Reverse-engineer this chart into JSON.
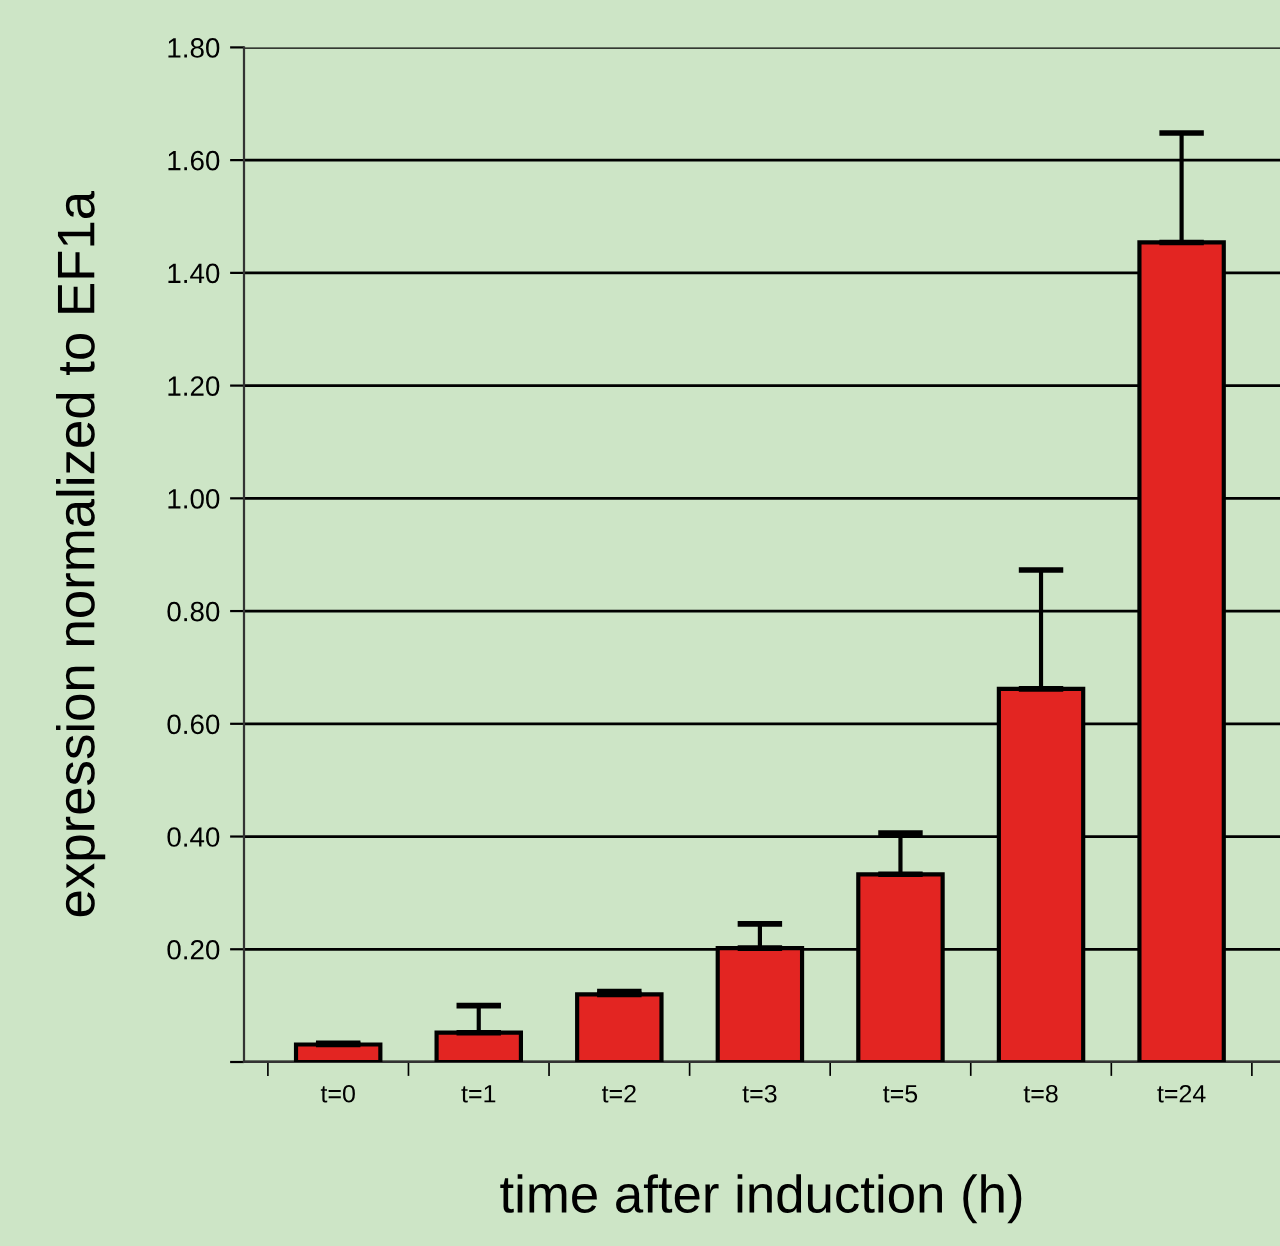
{
  "chart_data": {
    "type": "bar",
    "xlabel": "time after induction (h)",
    "ylabel": "expression normalized to EF1a",
    "categories": [
      "t=0",
      "t=1",
      "t=2",
      "t=3",
      "t=5",
      "t=8",
      "t=24"
    ],
    "values": [
      0.031,
      0.052,
      0.12,
      0.202,
      0.333,
      0.662,
      1.454
    ],
    "errors": [
      [
        0.031,
        0.033
      ],
      [
        0.052,
        0.1
      ],
      [
        0.12,
        0.125
      ],
      [
        0.202,
        0.245
      ],
      [
        0.333,
        0.406
      ],
      [
        0.662,
        0.873
      ],
      [
        1.454,
        1.648
      ]
    ],
    "color": "#e32522",
    "ylim": [
      0,
      1.8
    ],
    "yticks": [
      {
        "value": 0,
        "label": null
      },
      {
        "value": 0.2,
        "label": "0.20"
      },
      {
        "value": 0.4,
        "label": "0.40"
      },
      {
        "value": 0.6,
        "label": "0.60"
      },
      {
        "value": 0.8,
        "label": "0.80"
      },
      {
        "value": 1.0,
        "label": "1.00"
      },
      {
        "value": 1.2,
        "label": "1.20"
      },
      {
        "value": 1.4,
        "label": "1.40"
      },
      {
        "value": 1.6,
        "label": "1.60"
      },
      {
        "value": 1.8,
        "label": "1.80"
      }
    ],
    "grid": "y"
  }
}
